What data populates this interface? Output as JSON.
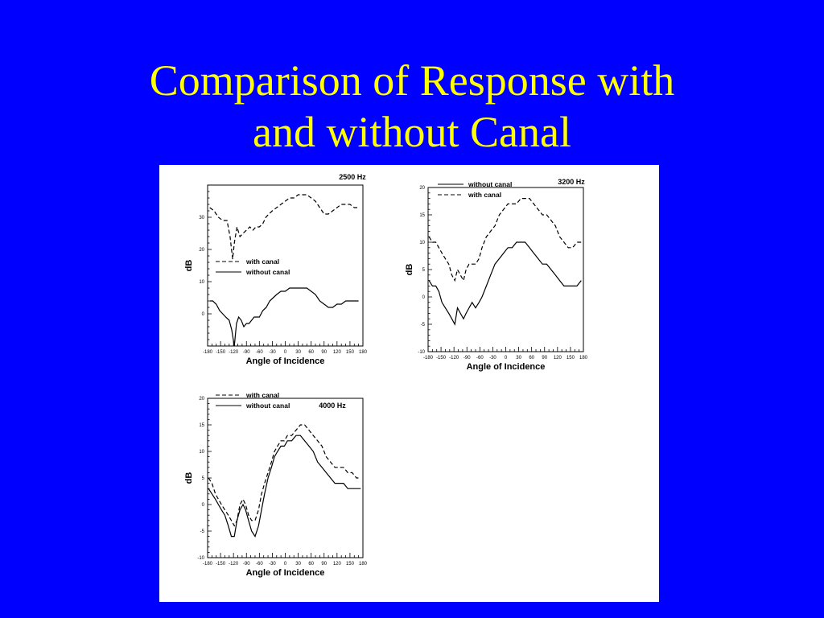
{
  "slide": {
    "title_line1": "Comparison of Response with",
    "title_line2": "and without Canal",
    "background": "#0000ff",
    "title_color": "#ffff00"
  },
  "chart_data": [
    {
      "type": "line",
      "title": "2500 Hz",
      "xlabel": "Angle of Incidence",
      "ylabel": "dB",
      "xlim": [
        -180,
        180
      ],
      "ylim": [
        -10,
        40
      ],
      "xticks": [
        -180,
        -150,
        -120,
        -90,
        -60,
        -30,
        0,
        30,
        60,
        90,
        120,
        150,
        180
      ],
      "yticks": [
        0,
        10,
        20,
        30
      ],
      "legend": "center-left",
      "legend_order": [
        "with canal",
        "without canal"
      ],
      "series": [
        {
          "name": "with canal",
          "style": "dashed",
          "x": [
            -175,
            -165,
            -155,
            -145,
            -135,
            -128,
            -122,
            -118,
            -112,
            -105,
            -98,
            -90,
            -82,
            -75,
            -68,
            -60,
            -52,
            -45,
            -38,
            -30,
            -20,
            -10,
            0,
            10,
            20,
            30,
            40,
            50,
            60,
            70,
            80,
            90,
            100,
            110,
            120,
            130,
            140,
            150,
            160,
            170
          ],
          "y": [
            33,
            32,
            30,
            29,
            29,
            24,
            17,
            22,
            27,
            24,
            25,
            26,
            27,
            26,
            27,
            27,
            28,
            30,
            31,
            32,
            33,
            34,
            35,
            36,
            36,
            37,
            37,
            37,
            36,
            35,
            33,
            31,
            31,
            32,
            33,
            34,
            34,
            34,
            33,
            33
          ]
        },
        {
          "name": "without canal",
          "style": "solid",
          "x": [
            -175,
            -168,
            -160,
            -152,
            -145,
            -138,
            -130,
            -124,
            -118,
            -113,
            -108,
            -102,
            -96,
            -90,
            -84,
            -78,
            -72,
            -66,
            -60,
            -52,
            -44,
            -36,
            -28,
            -20,
            -10,
            0,
            10,
            20,
            30,
            40,
            50,
            60,
            70,
            80,
            90,
            100,
            110,
            120,
            130,
            140,
            150,
            160,
            170
          ],
          "y": [
            4,
            4,
            3,
            1,
            0,
            -1,
            -2,
            -5,
            -10,
            -3,
            -1,
            -2,
            -4,
            -3,
            -3,
            -2,
            -1,
            -1,
            -1,
            1,
            2,
            4,
            5,
            6,
            7,
            7,
            8,
            8,
            8,
            8,
            8,
            7,
            6,
            4,
            3,
            2,
            2,
            3,
            3,
            4,
            4,
            4,
            4
          ]
        }
      ]
    },
    {
      "type": "line",
      "title": "3200 Hz",
      "xlabel": "Angle of Incidence",
      "ylabel": "dB",
      "xlim": [
        -180,
        180
      ],
      "ylim": [
        -10,
        20
      ],
      "xticks": [
        -180,
        -150,
        -120,
        -90,
        -60,
        -30,
        0,
        30,
        60,
        90,
        120,
        150,
        180
      ],
      "yticks": [
        -10,
        -5,
        0,
        5,
        10,
        15,
        20
      ],
      "legend": "top-left",
      "legend_order": [
        "without canal",
        "with canal"
      ],
      "series": [
        {
          "name": "without canal",
          "style": "solid",
          "x": [
            -178,
            -170,
            -162,
            -155,
            -148,
            -140,
            -132,
            -125,
            -118,
            -112,
            -105,
            -98,
            -92,
            -85,
            -78,
            -70,
            -62,
            -55,
            -45,
            -35,
            -25,
            -15,
            -5,
            5,
            15,
            25,
            35,
            45,
            55,
            65,
            75,
            85,
            95,
            105,
            115,
            125,
            135,
            145,
            155,
            165,
            175
          ],
          "y": [
            3,
            2,
            2,
            1,
            -1,
            -2,
            -3,
            -4,
            -5,
            -2,
            -3,
            -4,
            -3,
            -2,
            -1,
            -2,
            -1,
            0,
            2,
            4,
            6,
            7,
            8,
            9,
            9,
            10,
            10,
            10,
            9,
            8,
            7,
            6,
            6,
            5,
            4,
            3,
            2,
            2,
            2,
            2,
            3
          ]
        },
        {
          "name": "with canal",
          "style": "dashed",
          "x": [
            -178,
            -170,
            -162,
            -155,
            -148,
            -140,
            -132,
            -125,
            -118,
            -112,
            -105,
            -98,
            -92,
            -85,
            -78,
            -70,
            -62,
            -55,
            -45,
            -35,
            -25,
            -15,
            -5,
            5,
            15,
            25,
            35,
            45,
            55,
            65,
            75,
            85,
            95,
            105,
            115,
            125,
            135,
            145,
            155,
            165,
            175
          ],
          "y": [
            11,
            10,
            10,
            9,
            8,
            7,
            6,
            4,
            3,
            5,
            4,
            3,
            5,
            6,
            6,
            6,
            7,
            9,
            11,
            12,
            13,
            15,
            16,
            17,
            17,
            17,
            18,
            18,
            18,
            17,
            16,
            15,
            15,
            14,
            13,
            11,
            10,
            9,
            9,
            10,
            10
          ]
        }
      ]
    },
    {
      "type": "line",
      "title": "4000 Hz",
      "xlabel": "Angle of Incidence",
      "ylabel": "dB",
      "xlim": [
        -180,
        180
      ],
      "ylim": [
        -10,
        20
      ],
      "xticks": [
        -180,
        -150,
        -120,
        -90,
        -60,
        -30,
        0,
        30,
        60,
        90,
        120,
        150,
        180
      ],
      "yticks": [
        -10,
        -5,
        0,
        5,
        10,
        15,
        20
      ],
      "legend": "top-left",
      "legend_order": [
        "with canal",
        "without canal"
      ],
      "series": [
        {
          "name": "with canal",
          "style": "dashed",
          "x": [
            -178,
            -170,
            -162,
            -155,
            -148,
            -140,
            -132,
            -125,
            -118,
            -112,
            -105,
            -98,
            -92,
            -85,
            -78,
            -70,
            -62,
            -55,
            -48,
            -40,
            -32,
            -25,
            -18,
            -10,
            -2,
            5,
            15,
            25,
            35,
            45,
            55,
            65,
            75,
            85,
            95,
            105,
            115,
            125,
            135,
            145,
            155,
            165,
            175
          ],
          "y": [
            5,
            4,
            2,
            1,
            0,
            -1,
            -2,
            -3,
            -4,
            -3,
            0,
            1,
            0,
            -2,
            -3,
            -3,
            -1,
            2,
            4,
            6,
            8,
            10,
            11,
            12,
            12,
            13,
            13,
            14,
            15,
            15,
            14,
            13,
            12,
            11,
            9,
            8,
            7,
            7,
            7,
            6,
            6,
            5,
            5
          ]
        },
        {
          "name": "without canal",
          "style": "solid",
          "x": [
            -178,
            -170,
            -162,
            -155,
            -148,
            -140,
            -132,
            -125,
            -118,
            -112,
            -105,
            -98,
            -92,
            -85,
            -78,
            -70,
            -62,
            -55,
            -48,
            -40,
            -32,
            -25,
            -18,
            -10,
            -2,
            5,
            15,
            25,
            35,
            45,
            55,
            65,
            75,
            85,
            95,
            105,
            115,
            125,
            135,
            145,
            155,
            165,
            175
          ],
          "y": [
            3,
            2,
            1,
            0,
            -1,
            -2,
            -4,
            -6,
            -6,
            -3,
            -1,
            0,
            -1,
            -3,
            -5,
            -6,
            -4,
            -1,
            2,
            5,
            7,
            9,
            10,
            11,
            11,
            12,
            12,
            13,
            13,
            12,
            11,
            10,
            8,
            7,
            6,
            5,
            4,
            4,
            4,
            3,
            3,
            3,
            3
          ]
        }
      ]
    }
  ]
}
